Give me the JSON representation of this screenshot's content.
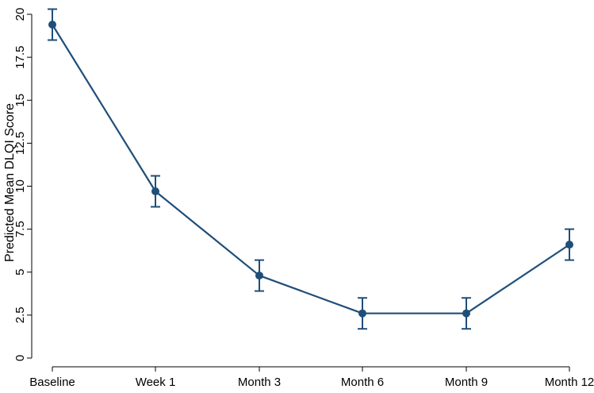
{
  "chart_data": {
    "type": "line",
    "title": "",
    "xlabel": "",
    "ylabel": "Predicted Mean DLQI Score",
    "categories": [
      "Baseline",
      "Week 1",
      "Month 3",
      "Month 6",
      "Month 9",
      "Month 12"
    ],
    "yticks": [
      "0",
      "2.5",
      "5",
      "7.5",
      "10",
      "12.5",
      "15",
      "17.5",
      "20"
    ],
    "ylim": [
      0,
      20
    ],
    "grid": false,
    "legend": "none",
    "series": [
      {
        "values": [
          19.4,
          9.7,
          4.8,
          2.6,
          2.6,
          6.6
        ],
        "ci_lower": [
          18.5,
          8.8,
          3.9,
          1.7,
          1.7,
          5.7
        ],
        "ci_upper": [
          20.3,
          10.6,
          5.7,
          3.5,
          3.5,
          7.5
        ],
        "color": "#1f4e79"
      }
    ]
  }
}
